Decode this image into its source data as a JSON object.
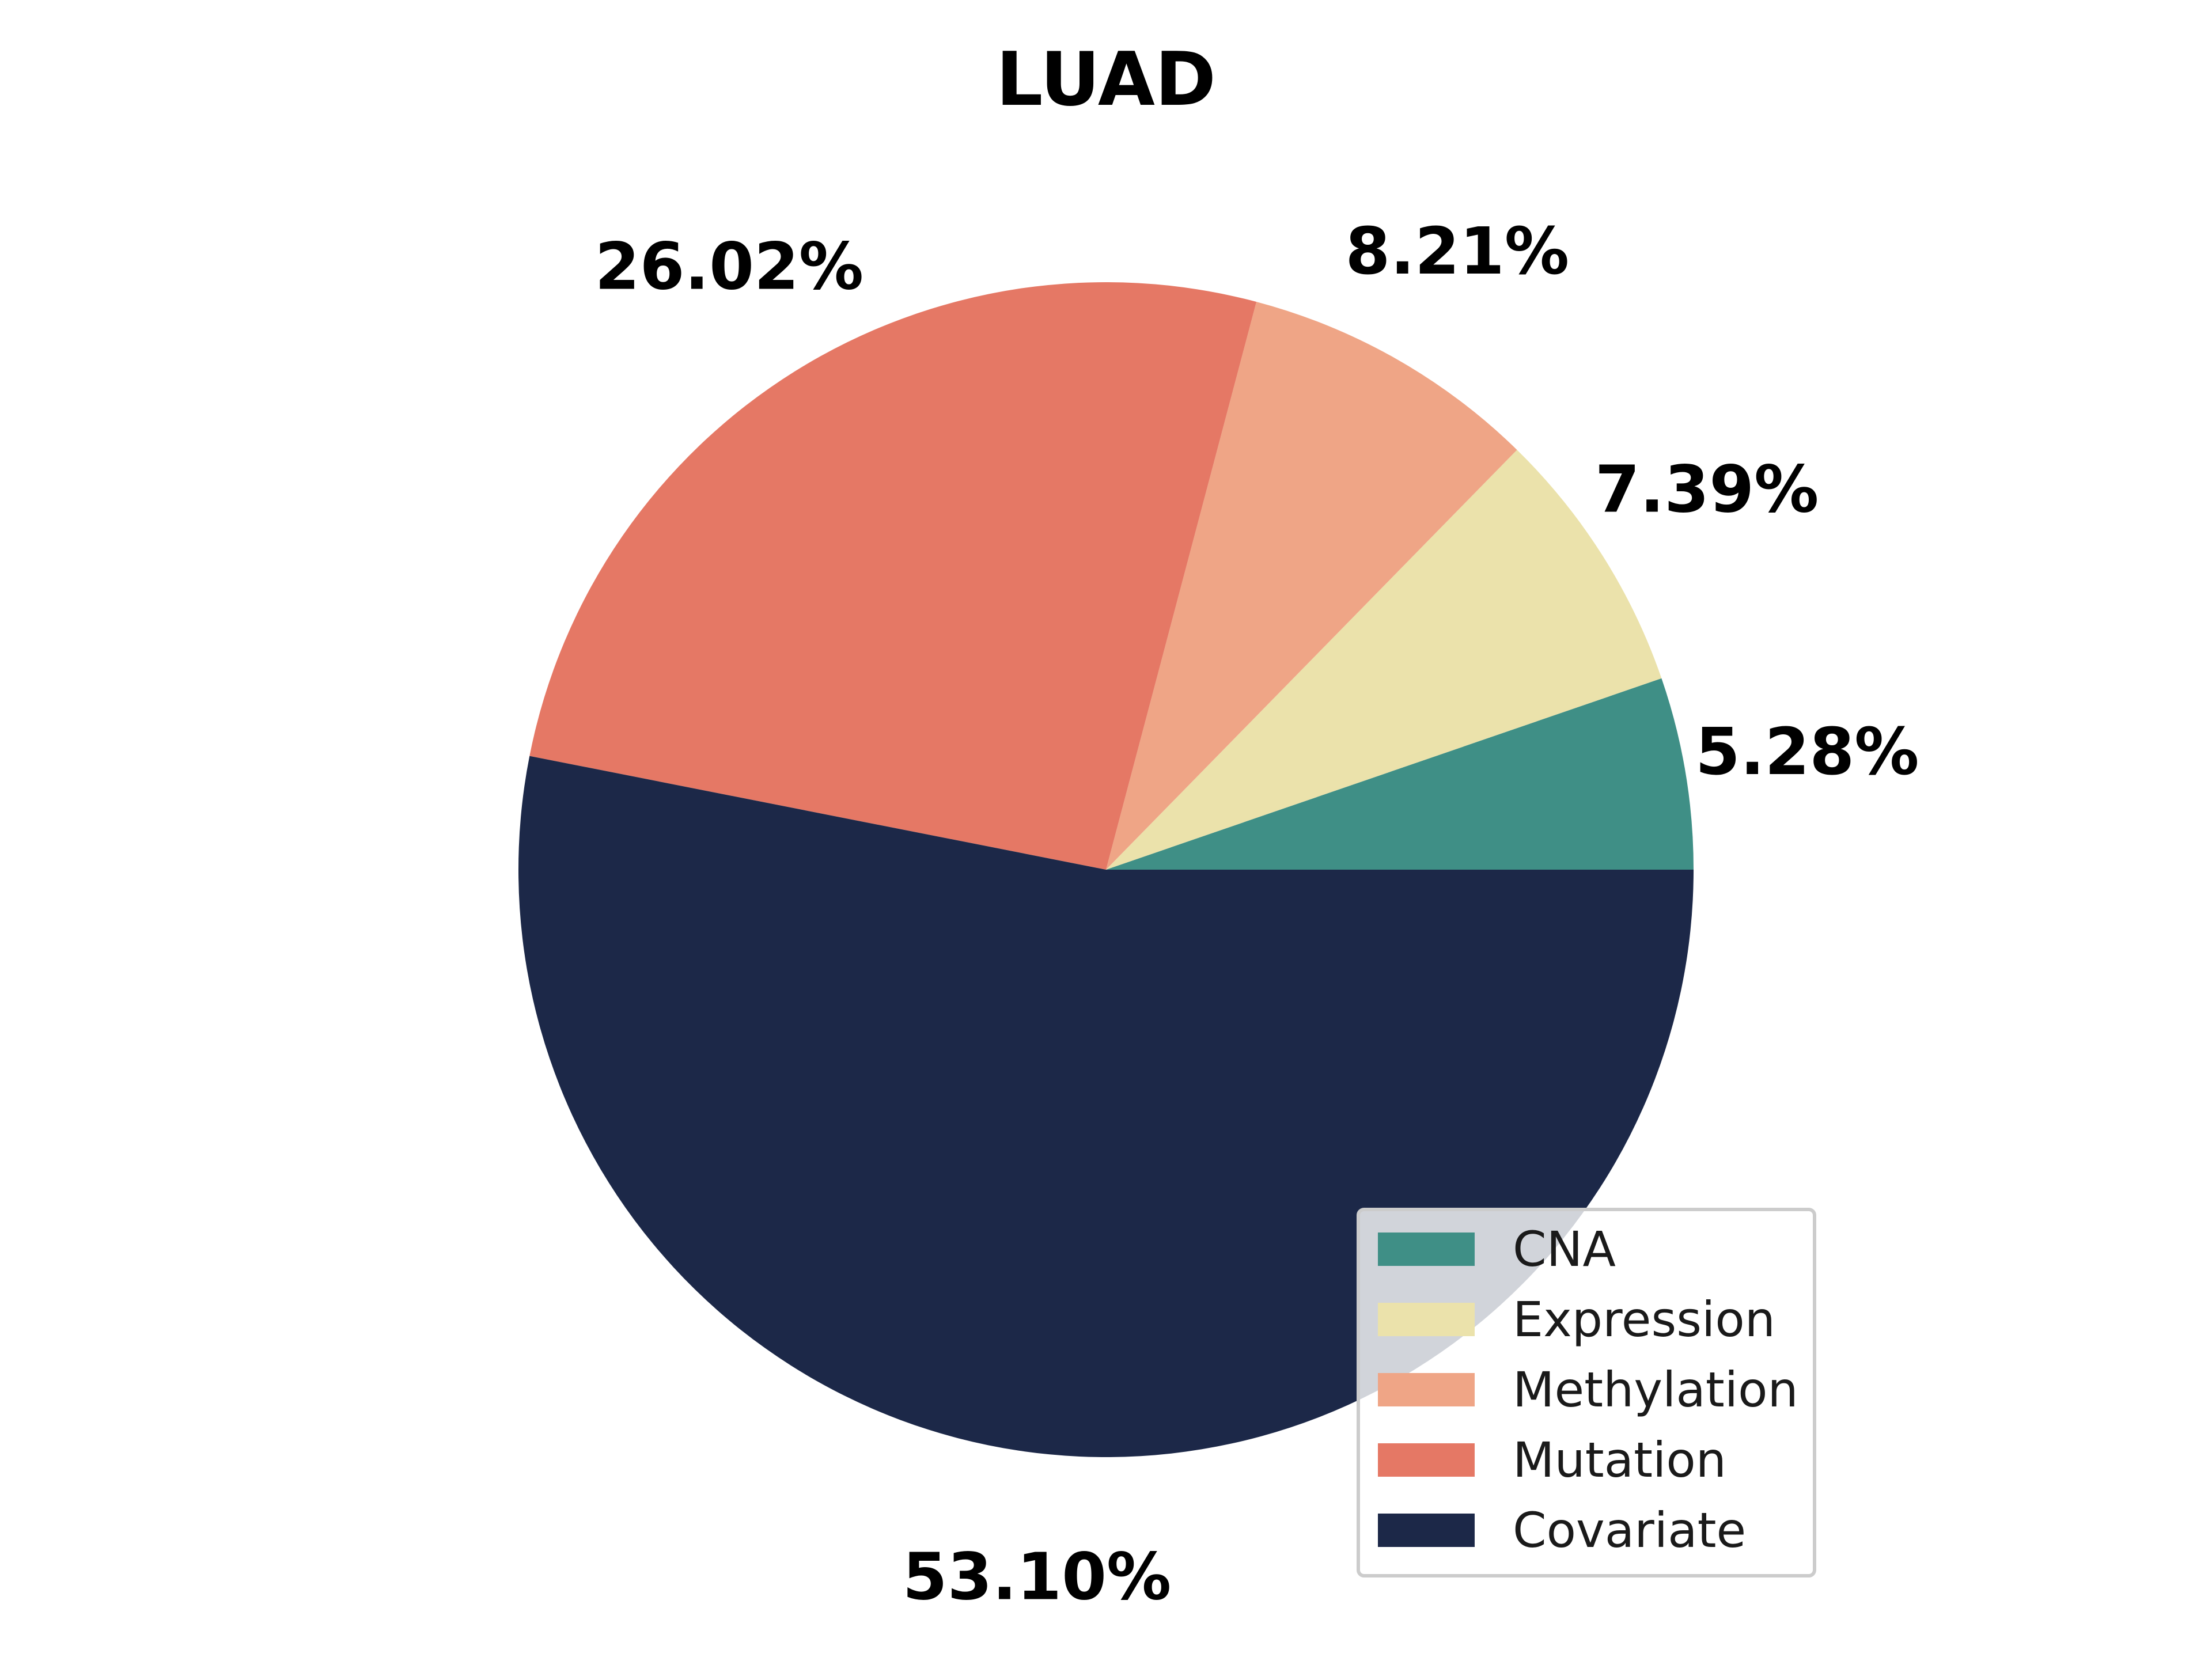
{
  "chart_data": {
    "type": "pie",
    "title": "LUAD",
    "start_angle_deg": 0,
    "direction": "counterclockwise",
    "slices": [
      {
        "label": "CNA",
        "value": 5.28,
        "display": "5.28%",
        "color": "#3f8f86"
      },
      {
        "label": "Expression",
        "value": 7.39,
        "display": "7.39%",
        "color": "#ebe2ab"
      },
      {
        "label": "Methylation",
        "value": 8.21,
        "display": "8.21%",
        "color": "#efa586"
      },
      {
        "label": "Mutation",
        "value": 26.02,
        "display": "26.02%",
        "color": "#e57865"
      },
      {
        "label": "Covariate",
        "value": 53.1,
        "display": "53.10%",
        "color": "#1c2848"
      }
    ],
    "legend": {
      "placement": "lower-right",
      "entries": [
        "CNA",
        "Expression",
        "Methylation",
        "Mutation",
        "Covariate"
      ]
    }
  }
}
